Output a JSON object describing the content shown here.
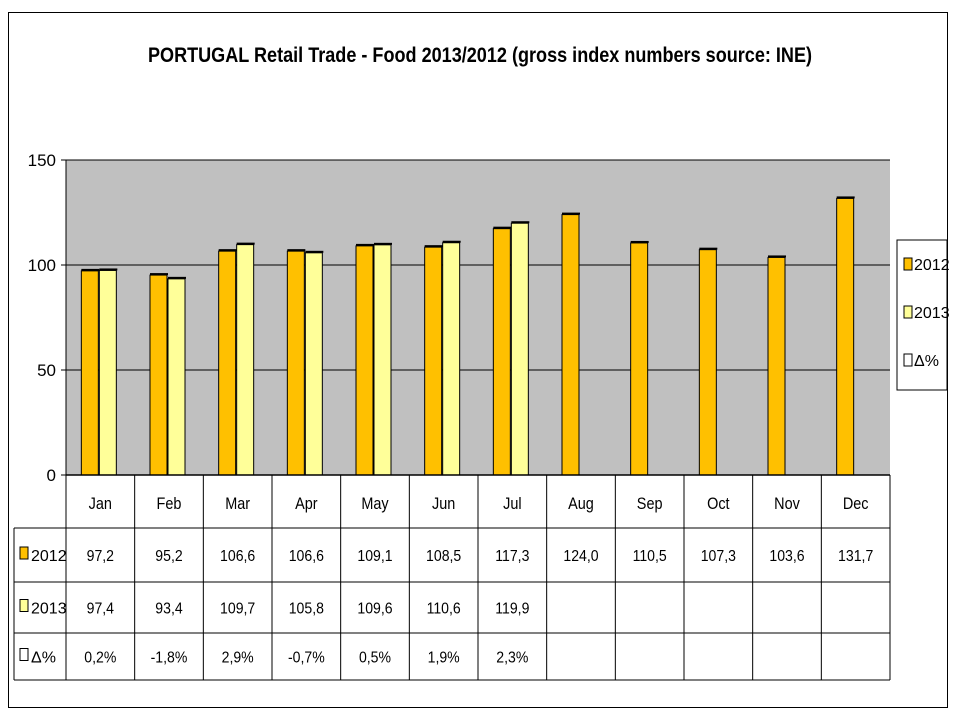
{
  "chart_data": {
    "type": "bar",
    "title": "PORTUGAL Retail Trade - Food 2013/2012 (gross index numbers source: INE)",
    "categories": [
      "Jan",
      "Feb",
      "Mar",
      "Apr",
      "May",
      "Jun",
      "Jul",
      "Aug",
      "Sep",
      "Oct",
      "Nov",
      "Dec"
    ],
    "series": [
      {
        "name": "2012",
        "color": "#FFC000",
        "values": [
          97.2,
          95.2,
          106.6,
          106.6,
          109.1,
          108.5,
          117.3,
          124.0,
          110.5,
          107.3,
          103.6,
          131.7
        ]
      },
      {
        "name": "2013",
        "color": "#FFFF99",
        "values": [
          97.4,
          93.4,
          109.7,
          105.8,
          109.6,
          110.6,
          119.9,
          null,
          null,
          null,
          null,
          null
        ]
      },
      {
        "name": "Δ%",
        "color": "#FFFFFF",
        "values": [
          0.2,
          -1.8,
          2.9,
          -0.7,
          0.5,
          1.9,
          2.3,
          null,
          null,
          null,
          null,
          null
        ]
      }
    ],
    "table_rows": [
      {
        "label": "2012",
        "cells": [
          "97,2",
          "95,2",
          "106,6",
          "106,6",
          "109,1",
          "108,5",
          "117,3",
          "124,0",
          "110,5",
          "107,3",
          "103,6",
          "131,7"
        ]
      },
      {
        "label": "2013",
        "cells": [
          "97,4",
          "93,4",
          "109,7",
          "105,8",
          "109,6",
          "110,6",
          "119,9",
          "",
          "",
          "",
          "",
          ""
        ]
      },
      {
        "label": "Δ%",
        "cells": [
          "0,2%",
          "-1,8%",
          "2,9%",
          "-0,7%",
          "0,5%",
          "1,9%",
          "2,3%",
          "",
          "",
          "",
          "",
          ""
        ]
      }
    ],
    "ylim": [
      0,
      150
    ],
    "yticks": [
      "0",
      "50",
      "100",
      "150"
    ],
    "ytick_values": [
      0,
      50,
      100,
      150
    ],
    "grid": true,
    "legend_position": "right",
    "plot_background": "#C0C0C0"
  }
}
